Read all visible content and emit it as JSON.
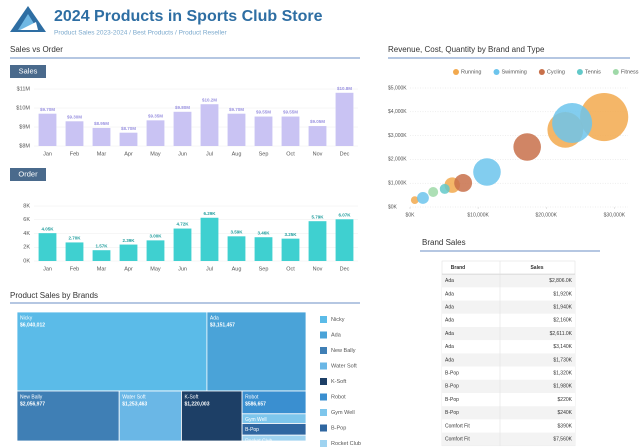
{
  "header": {
    "title": "2024 Products in Sports Club Store",
    "subtitle": "Product Sales 2023-2024 / Best Products / Product Reseller"
  },
  "chart_data": [
    {
      "type": "bar",
      "section": "Sales vs Order",
      "title": "Sales",
      "color": "#c9c3f3",
      "categories": [
        "Jan",
        "Feb",
        "Mar",
        "Apr",
        "May",
        "Jun",
        "Jul",
        "Aug",
        "Sep",
        "Oct",
        "Nov",
        "Dec"
      ],
      "values": [
        9.7,
        9.3,
        8.95,
        8.7,
        9.35,
        9.8,
        10.2,
        9.7,
        9.55,
        9.55,
        9.05,
        10.8
      ],
      "value_labels": [
        "$9.70M",
        "$9.30M",
        "$8.95M",
        "$8.70M",
        "$9.35M",
        "$9.80M",
        "$10.2M",
        "$9.70M",
        "$9.55M",
        "$9.55M",
        "$9.05M",
        "$10.8M"
      ],
      "ylim": [
        8,
        11
      ],
      "yticks": [
        {
          "value": 8,
          "label": "$8M"
        },
        {
          "value": 9,
          "label": "$9M"
        },
        {
          "value": 10,
          "label": "$10M"
        },
        {
          "value": 11,
          "label": "$11M"
        }
      ]
    },
    {
      "type": "bar",
      "title": "Order",
      "color": "#3fd0d0",
      "categories": [
        "Jan",
        "Feb",
        "Mar",
        "Apr",
        "May",
        "Jun",
        "Jul",
        "Aug",
        "Sep",
        "Oct",
        "Nov",
        "Dec"
      ],
      "values": [
        4.05,
        2.7,
        1.57,
        2.39,
        3.0,
        4.72,
        6.29,
        3.59,
        3.46,
        3.25,
        5.79,
        6.07
      ],
      "value_labels": [
        "4.05K",
        "2.70K",
        "1.57K",
        "2.39K",
        "3.00K",
        "4.72K",
        "6.29K",
        "3.59K",
        "3.46K",
        "3.25K",
        "5.79K",
        "6.07K"
      ],
      "ylim": [
        0,
        8
      ],
      "yticks": [
        {
          "value": 0,
          "label": "0K"
        },
        {
          "value": 2,
          "label": "2K"
        },
        {
          "value": 4,
          "label": "4K"
        },
        {
          "value": 6,
          "label": "6K"
        },
        {
          "value": 8,
          "label": "8K"
        }
      ]
    },
    {
      "type": "bubble",
      "title": "Revenue, Cost, Quantity by Brand and Type",
      "xlim": [
        0,
        32000
      ],
      "ylim": [
        0,
        5000
      ],
      "xticks": [
        {
          "value": 0,
          "label": "$0K"
        },
        {
          "value": 10000,
          "label": "$10,000K"
        },
        {
          "value": 20000,
          "label": "$20,000K"
        },
        {
          "value": 30000,
          "label": "$30,000K"
        }
      ],
      "yticks": [
        {
          "value": 0,
          "label": "$0K"
        },
        {
          "value": 1000,
          "label": "$1,000K"
        },
        {
          "value": 2000,
          "label": "$2,000K"
        },
        {
          "value": 3000,
          "label": "$3,000K"
        },
        {
          "value": 4000,
          "label": "$4,000K"
        },
        {
          "value": 5000,
          "label": "$5,000K"
        }
      ],
      "series": [
        {
          "name": "Running",
          "color": "#f2a94e",
          "x": [
            28500,
            22800,
            6200,
            700
          ],
          "values": [
            3780,
            3240,
            920,
            290
          ],
          "sizes": [
            580,
            320,
            60,
            15
          ]
        },
        {
          "name": "Swimming",
          "color": "#6cc4ec",
          "x": [
            23800,
            11300,
            1900
          ],
          "values": [
            3530,
            1470,
            380
          ],
          "sizes": [
            400,
            190,
            35
          ]
        },
        {
          "name": "Cycling",
          "color": "#c8704a",
          "x": [
            17200,
            7800
          ],
          "values": [
            2520,
            1010
          ],
          "sizes": [
            190,
            80
          ]
        },
        {
          "name": "Tennis",
          "color": "#63c9c9",
          "x": [
            5100
          ],
          "values": [
            760
          ],
          "sizes": [
            25
          ]
        },
        {
          "name": "Fitness",
          "color": "#9fd9a8",
          "x": [
            3400
          ],
          "values": [
            630
          ],
          "sizes": [
            25
          ]
        }
      ]
    },
    {
      "type": "treemap",
      "title": "Product Sales by Brands",
      "categories": [
        "Nicky",
        "Ada",
        "New Bally",
        "Water Soft",
        "K-Soft",
        "Robot",
        "Gym Well",
        "B-Pop",
        "Rocket Club"
      ],
      "colors": [
        "#5bbbe8",
        "#4aa3d8",
        "#3f7fb5",
        "#6ab7e6",
        "#1d3f66",
        "#3a8fd0",
        "#7ec6ec",
        "#2f66a0",
        "#9fd3f0"
      ],
      "values": [
        6040012,
        3151457,
        2056977,
        1253463,
        1220003,
        586657,
        250000,
        300000,
        150000
      ],
      "value_labels": [
        "$6,040,012",
        "$3,151,457",
        "$2,056,977",
        "$1,253,463",
        "$1,220,003",
        "$586,657",
        null,
        null,
        null
      ]
    }
  ],
  "table": {
    "title": "Brand Sales",
    "columns": [
      "Brand",
      "Sales"
    ],
    "rows": [
      [
        "Ada",
        "$2,806.0K"
      ],
      [
        "Ada",
        "$1,920K"
      ],
      [
        "Ada",
        "$1,940K"
      ],
      [
        "Ada",
        "$2,160K"
      ],
      [
        "Ada",
        "$2,611.0K"
      ],
      [
        "Ada",
        "$3,140K"
      ],
      [
        "Ada",
        "$1,730K"
      ],
      [
        "B-Pop",
        "$1,320K"
      ],
      [
        "B-Pop",
        "$1,980K"
      ],
      [
        "B-Pop",
        "$220K"
      ],
      [
        "B-Pop",
        "$240K"
      ],
      [
        "Comfort Fit",
        "$390K"
      ],
      [
        "Comfort Fit",
        "$7,560K"
      ]
    ]
  }
}
